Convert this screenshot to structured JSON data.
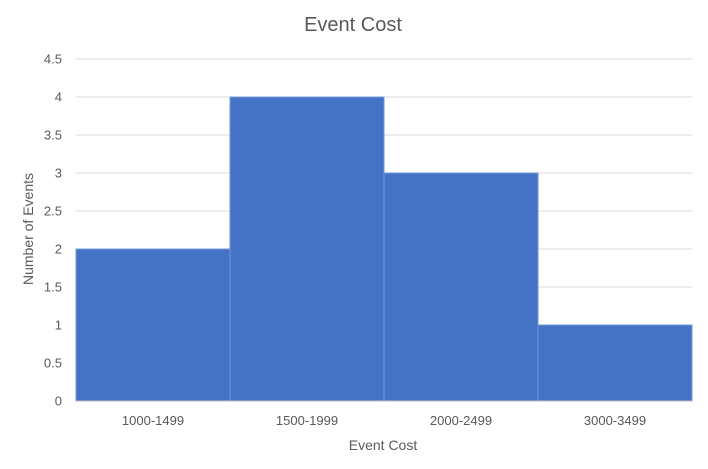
{
  "chart_data": {
    "type": "bar",
    "title": "Event Cost",
    "xlabel": "Event Cost",
    "ylabel": "Number of Events",
    "categories": [
      "1000-1499",
      "1500-1999",
      "2000-2499",
      "3000-3499"
    ],
    "values": [
      2,
      4,
      3,
      1
    ],
    "ylim": [
      0,
      4.5
    ],
    "yticks": [
      "0",
      "0.5",
      "1",
      "1.5",
      "2",
      "2.5",
      "3",
      "3.5",
      "4",
      "4.5"
    ],
    "grid": true,
    "legend": "none",
    "bar_color": "#4472c4"
  }
}
